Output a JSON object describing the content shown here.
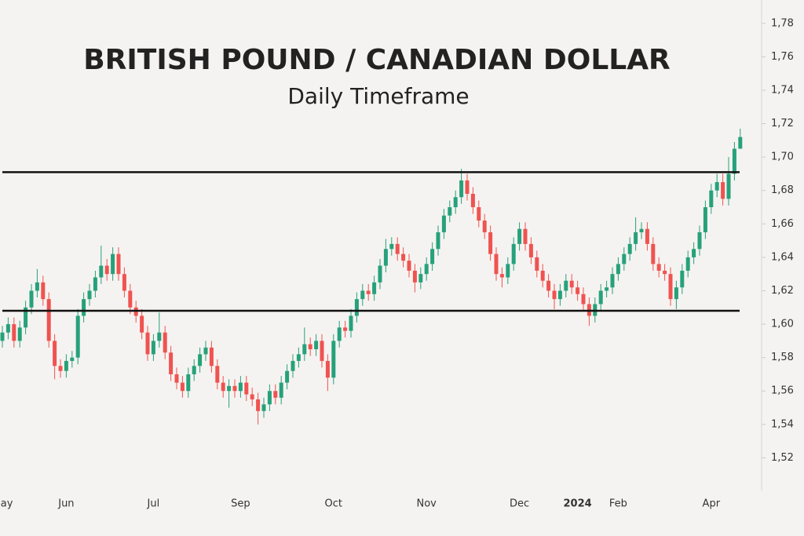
{
  "chart_data": {
    "type": "candlestick",
    "title": "BRITISH POUND / CANADIAN DOLLAR",
    "subtitle": "Daily Timeframe",
    "up_color": "#26a17b",
    "down_color": "#ef5350",
    "ylim": [
      1.5,
      1.794
    ],
    "yticks": [
      {
        "value": 1.52,
        "label": "1,52"
      },
      {
        "value": 1.54,
        "label": "1,54"
      },
      {
        "value": 1.56,
        "label": "1,56"
      },
      {
        "value": 1.58,
        "label": "1,58"
      },
      {
        "value": 1.6,
        "label": "1,60"
      },
      {
        "value": 1.62,
        "label": "1,62"
      },
      {
        "value": 1.64,
        "label": "1,64"
      },
      {
        "value": 1.66,
        "label": "1,66"
      },
      {
        "value": 1.68,
        "label": "1,68"
      },
      {
        "value": 1.7,
        "label": "1,70"
      },
      {
        "value": 1.72,
        "label": "1,72"
      },
      {
        "value": 1.74,
        "label": "1,74"
      },
      {
        "value": 1.76,
        "label": "1,76"
      },
      {
        "value": 1.78,
        "label": "1,78"
      }
    ],
    "hlines": [
      1.691,
      1.608
    ],
    "categories": [
      "May",
      null,
      null,
      null,
      null,
      null,
      null,
      null,
      null,
      null,
      null,
      "Jun",
      null,
      null,
      null,
      null,
      null,
      null,
      null,
      null,
      null,
      null,
      null,
      null,
      null,
      null,
      "Jul",
      null,
      null,
      null,
      null,
      null,
      null,
      null,
      null,
      null,
      null,
      null,
      null,
      null,
      null,
      "Sep",
      null,
      null,
      null,
      null,
      null,
      null,
      null,
      null,
      null,
      null,
      null,
      null,
      null,
      null,
      null,
      "Oct",
      null,
      null,
      null,
      null,
      null,
      null,
      null,
      null,
      null,
      null,
      null,
      null,
      null,
      null,
      null,
      "Nov",
      null,
      null,
      null,
      null,
      null,
      null,
      null,
      null,
      null,
      null,
      null,
      null,
      null,
      null,
      null,
      "Dec",
      null,
      null,
      null,
      null,
      null,
      null,
      null,
      null,
      null,
      "2024",
      null,
      null,
      null,
      null,
      null,
      null,
      "Feb",
      null,
      null,
      null,
      null,
      null,
      null,
      null,
      null,
      null,
      null,
      null,
      null,
      null,
      null,
      null,
      "Apr",
      null,
      null,
      null,
      null,
      null
    ],
    "open": [
      1.59,
      1.595,
      1.6,
      1.59,
      1.598,
      1.61,
      1.62,
      1.625,
      1.615,
      1.59,
      1.575,
      1.572,
      1.578,
      1.58,
      1.605,
      1.615,
      1.62,
      1.628,
      1.635,
      1.63,
      1.642,
      1.63,
      1.62,
      1.61,
      1.605,
      1.595,
      1.582,
      1.59,
      1.595,
      1.583,
      1.57,
      1.565,
      1.56,
      1.57,
      1.575,
      1.582,
      1.586,
      1.575,
      1.565,
      1.56,
      1.563,
      1.56,
      1.565,
      1.558,
      1.555,
      1.548,
      1.552,
      1.56,
      1.556,
      1.565,
      1.572,
      1.578,
      1.582,
      1.588,
      1.585,
      1.59,
      1.578,
      1.568,
      1.59,
      1.598,
      1.596,
      1.605,
      1.615,
      1.62,
      1.618,
      1.625,
      1.635,
      1.645,
      1.648,
      1.642,
      1.638,
      1.632,
      1.625,
      1.63,
      1.636,
      1.645,
      1.655,
      1.665,
      1.67,
      1.676,
      1.686,
      1.678,
      1.67,
      1.662,
      1.655,
      1.642,
      1.63,
      1.628,
      1.636,
      1.648,
      1.657,
      1.648,
      1.64,
      1.632,
      1.626,
      1.62,
      1.615,
      1.62,
      1.626,
      1.622,
      1.618,
      1.612,
      1.605,
      1.612,
      1.62,
      1.622,
      1.63,
      1.636,
      1.642,
      1.648,
      1.655,
      1.657,
      1.648,
      1.636,
      1.632,
      1.63,
      1.615,
      1.622,
      1.632,
      1.64,
      1.645,
      1.655,
      1.67,
      1.68,
      1.685,
      1.675,
      1.69,
      1.705
    ],
    "high": [
      1.599,
      1.604,
      1.604,
      1.602,
      1.614,
      1.624,
      1.633,
      1.629,
      1.619,
      1.594,
      1.579,
      1.582,
      1.584,
      1.609,
      1.619,
      1.624,
      1.632,
      1.647,
      1.639,
      1.646,
      1.646,
      1.634,
      1.624,
      1.614,
      1.609,
      1.599,
      1.594,
      1.607,
      1.599,
      1.587,
      1.574,
      1.569,
      1.574,
      1.579,
      1.586,
      1.59,
      1.59,
      1.579,
      1.569,
      1.567,
      1.567,
      1.569,
      1.569,
      1.562,
      1.559,
      1.556,
      1.564,
      1.564,
      1.569,
      1.576,
      1.582,
      1.586,
      1.598,
      1.592,
      1.594,
      1.594,
      1.582,
      1.594,
      1.602,
      1.602,
      1.609,
      1.619,
      1.624,
      1.624,
      1.629,
      1.639,
      1.651,
      1.652,
      1.652,
      1.646,
      1.642,
      1.636,
      1.634,
      1.64,
      1.649,
      1.659,
      1.669,
      1.674,
      1.68,
      1.693,
      1.69,
      1.682,
      1.674,
      1.666,
      1.659,
      1.646,
      1.634,
      1.64,
      1.652,
      1.661,
      1.661,
      1.652,
      1.644,
      1.636,
      1.63,
      1.624,
      1.624,
      1.63,
      1.63,
      1.626,
      1.622,
      1.616,
      1.616,
      1.624,
      1.626,
      1.634,
      1.64,
      1.646,
      1.652,
      1.664,
      1.661,
      1.661,
      1.652,
      1.64,
      1.636,
      1.634,
      1.626,
      1.636,
      1.644,
      1.649,
      1.659,
      1.674,
      1.684,
      1.69,
      1.69,
      1.7,
      1.709,
      1.717
    ],
    "low": [
      1.586,
      1.591,
      1.586,
      1.586,
      1.594,
      1.606,
      1.616,
      1.611,
      1.586,
      1.567,
      1.568,
      1.568,
      1.574,
      1.576,
      1.601,
      1.611,
      1.616,
      1.624,
      1.626,
      1.626,
      1.626,
      1.616,
      1.606,
      1.601,
      1.591,
      1.578,
      1.578,
      1.586,
      1.579,
      1.566,
      1.561,
      1.556,
      1.556,
      1.566,
      1.571,
      1.578,
      1.571,
      1.561,
      1.556,
      1.55,
      1.556,
      1.556,
      1.554,
      1.551,
      1.54,
      1.544,
      1.548,
      1.552,
      1.552,
      1.561,
      1.568,
      1.574,
      1.578,
      1.581,
      1.581,
      1.574,
      1.56,
      1.564,
      1.586,
      1.592,
      1.592,
      1.601,
      1.611,
      1.614,
      1.614,
      1.621,
      1.631,
      1.641,
      1.638,
      1.634,
      1.628,
      1.619,
      1.621,
      1.626,
      1.632,
      1.641,
      1.651,
      1.661,
      1.666,
      1.672,
      1.674,
      1.666,
      1.658,
      1.651,
      1.638,
      1.626,
      1.622,
      1.624,
      1.632,
      1.644,
      1.644,
      1.636,
      1.628,
      1.622,
      1.616,
      1.609,
      1.611,
      1.616,
      1.618,
      1.614,
      1.608,
      1.599,
      1.601,
      1.608,
      1.616,
      1.618,
      1.626,
      1.632,
      1.638,
      1.644,
      1.651,
      1.644,
      1.632,
      1.628,
      1.626,
      1.611,
      1.609,
      1.618,
      1.628,
      1.636,
      1.641,
      1.651,
      1.666,
      1.676,
      1.671,
      1.671,
      1.686,
      1.705
    ],
    "close": [
      1.595,
      1.6,
      1.59,
      1.598,
      1.61,
      1.62,
      1.625,
      1.615,
      1.59,
      1.575,
      1.572,
      1.578,
      1.58,
      1.605,
      1.615,
      1.62,
      1.628,
      1.635,
      1.63,
      1.642,
      1.63,
      1.62,
      1.61,
      1.605,
      1.595,
      1.582,
      1.59,
      1.595,
      1.583,
      1.57,
      1.565,
      1.56,
      1.57,
      1.575,
      1.582,
      1.586,
      1.575,
      1.565,
      1.56,
      1.563,
      1.56,
      1.565,
      1.558,
      1.555,
      1.548,
      1.552,
      1.56,
      1.556,
      1.565,
      1.572,
      1.578,
      1.582,
      1.588,
      1.585,
      1.59,
      1.578,
      1.568,
      1.59,
      1.598,
      1.596,
      1.605,
      1.615,
      1.62,
      1.618,
      1.625,
      1.635,
      1.645,
      1.648,
      1.642,
      1.638,
      1.632,
      1.625,
      1.63,
      1.636,
      1.645,
      1.655,
      1.665,
      1.67,
      1.676,
      1.686,
      1.678,
      1.67,
      1.662,
      1.655,
      1.642,
      1.63,
      1.628,
      1.636,
      1.648,
      1.657,
      1.648,
      1.64,
      1.632,
      1.626,
      1.62,
      1.615,
      1.62,
      1.626,
      1.622,
      1.618,
      1.612,
      1.605,
      1.612,
      1.62,
      1.622,
      1.63,
      1.636,
      1.642,
      1.648,
      1.655,
      1.657,
      1.648,
      1.636,
      1.632,
      1.63,
      1.615,
      1.622,
      1.632,
      1.64,
      1.645,
      1.655,
      1.67,
      1.68,
      1.685,
      1.675,
      1.69,
      1.705,
      1.712
    ]
  }
}
